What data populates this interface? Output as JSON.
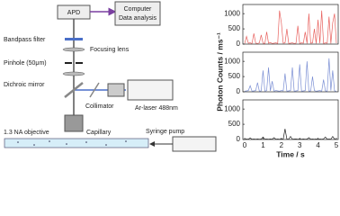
{
  "diagram": {
    "apd": "APD",
    "computer": [
      "Computer",
      "Data analysis"
    ],
    "bandpass": "Bandpass filter",
    "focusing": "Focusing lens",
    "pinhole": "Pinhole (50μm)",
    "dichroic": "Dichroic mirror",
    "collimator": "Collimator",
    "laser": "Ar-laser 488nm",
    "objective": "1.3 NA objective",
    "capillary": "Capillary",
    "pump": "Syringe pump"
  },
  "chart_data": [
    {
      "type": "line",
      "x": [
        0,
        0.1,
        0.2,
        0.3,
        0.4,
        0.5,
        0.6,
        0.7,
        0.8,
        0.9,
        1,
        1.1,
        1.2,
        1.3,
        1.4,
        1.5,
        1.6,
        1.7,
        1.8,
        1.9,
        2,
        2.1,
        2.2,
        2.3,
        2.4,
        2.5,
        2.6,
        2.7,
        2.8,
        2.9,
        3,
        3.1,
        3.2,
        3.3,
        3.4,
        3.5,
        3.6,
        3.7,
        3.8,
        3.9,
        4,
        4.1,
        4.2,
        4.3,
        4.4,
        4.5,
        4.6,
        4.7,
        4.8,
        4.9,
        5
      ],
      "series": [
        {
          "color": "#e8625f",
          "values": [
            20,
            250,
            30,
            40,
            20,
            350,
            30,
            20,
            40,
            300,
            30,
            20,
            400,
            30,
            50,
            20,
            30,
            40,
            20,
            1100,
            700,
            30,
            40,
            500,
            20,
            30,
            40,
            20,
            30,
            600,
            20,
            40,
            30,
            400,
            20,
            1000,
            30,
            40,
            500,
            20,
            800,
            30,
            1100,
            20,
            40,
            30,
            900,
            20,
            700,
            1000,
            30
          ]
        }
      ],
      "xlim": [
        -0.1,
        5.1
      ],
      "ylim": [
        0,
        1300
      ],
      "yticks": [
        0,
        500,
        1000
      ]
    },
    {
      "type": "line",
      "y_label": "Photon Counts / ms⁻¹",
      "x": [
        0,
        0.1,
        0.2,
        0.3,
        0.4,
        0.5,
        0.6,
        0.7,
        0.8,
        0.9,
        1,
        1.1,
        1.2,
        1.3,
        1.4,
        1.5,
        1.6,
        1.7,
        1.8,
        1.9,
        2,
        2.1,
        2.2,
        2.3,
        2.4,
        2.5,
        2.6,
        2.7,
        2.8,
        2.9,
        3,
        3.1,
        3.2,
        3.3,
        3.4,
        3.5,
        3.6,
        3.7,
        3.8,
        3.9,
        4,
        4.1,
        4.2,
        4.3,
        4.4,
        4.5,
        4.6,
        4.7,
        4.8,
        4.9,
        5
      ],
      "series": [
        {
          "color": "#7b8fd4",
          "values": [
            20,
            30,
            40,
            200,
            20,
            30,
            40,
            300,
            20,
            30,
            700,
            20,
            40,
            800,
            30,
            350,
            20,
            40,
            30,
            20,
            40,
            30,
            600,
            20,
            30,
            40,
            800,
            20,
            30,
            40,
            900,
            20,
            30,
            40,
            1000,
            20,
            30,
            500,
            40,
            20,
            30,
            40,
            20,
            400,
            30,
            20,
            1100,
            40,
            700,
            30,
            20
          ]
        }
      ],
      "xlim": [
        -0.1,
        5.1
      ],
      "ylim": [
        0,
        1300
      ],
      "yticks": [
        0,
        500,
        1000
      ]
    },
    {
      "type": "line",
      "x_label": "Time / s",
      "x": [
        0,
        0.1,
        0.2,
        0.3,
        0.4,
        0.5,
        0.6,
        0.7,
        0.8,
        0.9,
        1,
        1.1,
        1.2,
        1.3,
        1.4,
        1.5,
        1.6,
        1.7,
        1.8,
        1.9,
        2,
        2.1,
        2.2,
        2.3,
        2.4,
        2.5,
        2.6,
        2.7,
        2.8,
        2.9,
        3,
        3.1,
        3.2,
        3.3,
        3.4,
        3.5,
        3.6,
        3.7,
        3.8,
        3.9,
        4,
        4.1,
        4.2,
        4.3,
        4.4,
        4.5,
        4.6,
        4.7,
        4.8,
        4.9,
        5
      ],
      "series": [
        {
          "color": "#222222",
          "values": [
            10,
            15,
            10,
            50,
            10,
            15,
            10,
            20,
            10,
            15,
            80,
            10,
            15,
            10,
            20,
            10,
            60,
            10,
            15,
            10,
            20,
            10,
            350,
            15,
            10,
            100,
            10,
            15,
            20,
            10,
            15,
            10,
            20,
            10,
            15,
            60,
            10,
            15,
            10,
            20,
            10,
            15,
            10,
            20,
            80,
            10,
            15,
            10,
            100,
            15,
            10
          ]
        }
      ],
      "xlim": [
        -0.1,
        5.1
      ],
      "ylim": [
        0,
        1300
      ],
      "yticks": [
        0,
        500,
        1000
      ],
      "xticks": [
        0,
        1,
        2,
        3,
        4,
        5
      ]
    }
  ]
}
